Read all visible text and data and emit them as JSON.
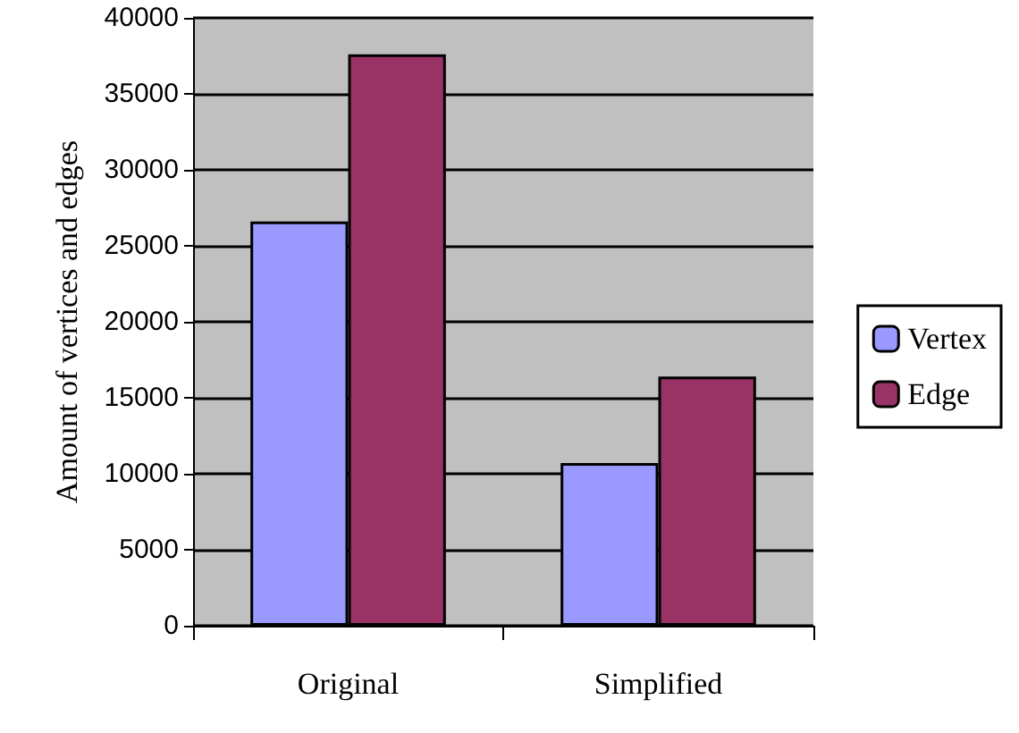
{
  "chart_data": {
    "type": "bar",
    "ylabel": "Amount of vertices and edges",
    "categories": [
      "Original",
      "Simplified"
    ],
    "series": [
      {
        "name": "Vertex",
        "color": "#9999ff",
        "values": [
          26600,
          10700
        ]
      },
      {
        "name": "Edge",
        "color": "#993366",
        "values": [
          37600,
          16400
        ]
      }
    ],
    "ylim": [
      0,
      40000
    ],
    "yticks": [
      0,
      5000,
      10000,
      15000,
      20000,
      25000,
      30000,
      35000,
      40000
    ],
    "grid": "y",
    "legend": "right"
  }
}
